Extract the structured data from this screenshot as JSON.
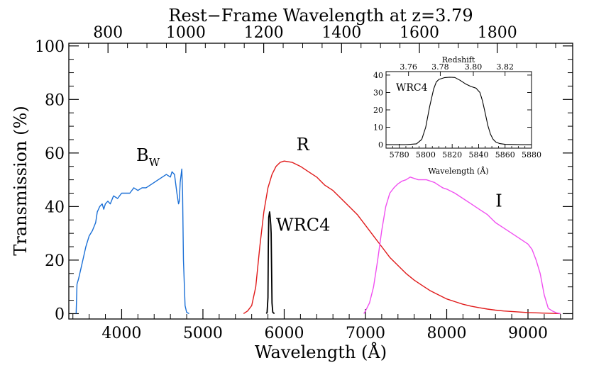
{
  "chart_data": [
    {
      "type": "line",
      "title": "",
      "xlabel": "Wavelength (Å)",
      "ylabel": "Transmission (%)",
      "xlim": [
        3350,
        9550
      ],
      "ylim": [
        -2,
        101
      ],
      "x_ticks": [
        4000,
        5000,
        6000,
        7000,
        8000,
        9000
      ],
      "y_ticks": [
        0,
        20,
        40,
        60,
        80,
        100
      ],
      "top_axis": {
        "label": "Rest−Frame Wavelength at z=3.79",
        "ticks": [
          800,
          1000,
          1200,
          1400,
          1600,
          1800
        ]
      },
      "grid": false,
      "annotations": [
        {
          "text": "B",
          "sub": "W",
          "x": 4180,
          "y": 57
        },
        {
          "text": "R",
          "x": 6150,
          "y": 61
        },
        {
          "text": "WRC4",
          "x": 5900,
          "y": 31
        },
        {
          "text": "I",
          "x": 8600,
          "y": 40
        }
      ],
      "series": [
        {
          "name": "B_W",
          "color": "#1a6fd6",
          "x": [
            3440,
            3450,
            3470,
            3500,
            3530,
            3560,
            3600,
            3640,
            3680,
            3700,
            3730,
            3760,
            3780,
            3800,
            3830,
            3860,
            3900,
            3950,
            4000,
            4050,
            4100,
            4150,
            4200,
            4250,
            4300,
            4350,
            4400,
            4450,
            4500,
            4550,
            4600,
            4620,
            4650,
            4680,
            4700,
            4710,
            4720,
            4740,
            4750,
            4760,
            4780,
            4800,
            4830
          ],
          "y": [
            0,
            11,
            13,
            17,
            21,
            25,
            29,
            31,
            34,
            38,
            40,
            41,
            39,
            41,
            42,
            41,
            44,
            43,
            45,
            45,
            45,
            47,
            46,
            47,
            47,
            48,
            49,
            50,
            51,
            52,
            51,
            53,
            52,
            45,
            41,
            42,
            49,
            54,
            45,
            20,
            3,
            0.5,
            0
          ]
        },
        {
          "name": "R",
          "color": "#e01a1a",
          "x": [
            5500,
            5550,
            5600,
            5650,
            5700,
            5750,
            5800,
            5850,
            5900,
            5950,
            6000,
            6100,
            6200,
            6300,
            6400,
            6500,
            6600,
            6700,
            6800,
            6900,
            7000,
            7100,
            7200,
            7300,
            7400,
            7500,
            7600,
            7700,
            7800,
            7900,
            8000,
            8100,
            8200,
            8300,
            8400,
            8500,
            8600,
            8700,
            8800,
            8900,
            9000,
            9100,
            9200,
            9300,
            9400
          ],
          "y": [
            0,
            1,
            3,
            10,
            25,
            38,
            47,
            52,
            55,
            56.5,
            57,
            56.5,
            55,
            53,
            51,
            48,
            46,
            43,
            40,
            37,
            33,
            29,
            25,
            21,
            18,
            15,
            12.5,
            10.5,
            8.5,
            7,
            5.5,
            4.5,
            3.5,
            2.8,
            2.2,
            1.7,
            1.3,
            1,
            0.8,
            0.6,
            0.4,
            0.3,
            0.2,
            0.1,
            0
          ]
        },
        {
          "name": "I",
          "color": "#f050f0",
          "x": [
            6980,
            7000,
            7050,
            7100,
            7150,
            7200,
            7250,
            7300,
            7350,
            7400,
            7450,
            7500,
            7550,
            7600,
            7650,
            7700,
            7750,
            7800,
            7850,
            7900,
            7950,
            8000,
            8100,
            8200,
            8300,
            8400,
            8500,
            8600,
            8700,
            8800,
            8900,
            9000,
            9050,
            9100,
            9150,
            9200,
            9250,
            9300,
            9350,
            9400
          ],
          "y": [
            0,
            1,
            4,
            10,
            20,
            31,
            40,
            45,
            47,
            48.5,
            49.5,
            50,
            51,
            50.5,
            50,
            50,
            50,
            49.5,
            49,
            48,
            47,
            46.5,
            45,
            43,
            41,
            39,
            37,
            34,
            32,
            30,
            28,
            26,
            24,
            20,
            15,
            7,
            2,
            1,
            0.3,
            0
          ]
        },
        {
          "name": "WRC4",
          "color": "#000000",
          "x": [
            5780,
            5790,
            5800,
            5805,
            5810,
            5815,
            5820,
            5825,
            5830,
            5835,
            5840,
            5845,
            5850,
            5860,
            5880
          ],
          "y": [
            0,
            0.5,
            6,
            25,
            36,
            37,
            38,
            37,
            35,
            33,
            30,
            17,
            4,
            0.5,
            0
          ]
        }
      ]
    },
    {
      "type": "line",
      "title": "",
      "xlabel": "Wavelength (Å)",
      "ylabel": "",
      "xlim": [
        5770,
        5880
      ],
      "ylim": [
        -2,
        42
      ],
      "x_ticks": [
        5780,
        5800,
        5820,
        5840,
        5860,
        5880
      ],
      "y_ticks": [
        0,
        10,
        20,
        30,
        40
      ],
      "top_axis": {
        "label": "Redshift",
        "ticks": [
          "3.76",
          "3.78",
          "3.80",
          "3.82"
        ],
        "tick_wavelengths": [
          5787,
          5811,
          5836,
          5860
        ]
      },
      "annotations": [
        {
          "text": "WRC4",
          "x": 5780,
          "y": 31
        }
      ],
      "series": [
        {
          "name": "WRC4",
          "color": "#000000",
          "x": [
            5770,
            5785,
            5793,
            5797,
            5800,
            5803,
            5806,
            5808,
            5810,
            5814,
            5818,
            5822,
            5826,
            5830,
            5834,
            5838,
            5841,
            5843,
            5845,
            5847,
            5849,
            5851,
            5853,
            5856,
            5860,
            5866,
            5872,
            5880
          ],
          "y": [
            0,
            0,
            0.5,
            3,
            10,
            22,
            32,
            36,
            37.5,
            38.5,
            38.8,
            38.6,
            37,
            35,
            33.5,
            32.5,
            30,
            25,
            18,
            11,
            6,
            3,
            1.5,
            0.6,
            0.2,
            0.1,
            0,
            0
          ]
        }
      ]
    }
  ]
}
